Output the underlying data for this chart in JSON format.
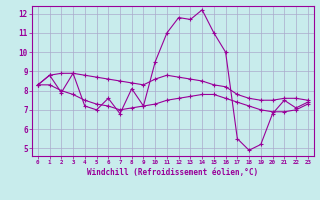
{
  "xlabel": "Windchill (Refroidissement éolien,°C)",
  "background_color": "#c8ecec",
  "line_color": "#990099",
  "grid_color": "#aaaacc",
  "yticks": [
    5,
    6,
    7,
    8,
    9,
    10,
    11,
    12
  ],
  "xticks": [
    0,
    1,
    2,
    3,
    4,
    5,
    6,
    7,
    8,
    9,
    10,
    11,
    12,
    13,
    14,
    15,
    16,
    17,
    18,
    19,
    20,
    21,
    22,
    23
  ],
  "hours": [
    0,
    1,
    2,
    3,
    4,
    5,
    6,
    7,
    8,
    9,
    10,
    11,
    12,
    13,
    14,
    15,
    16,
    17,
    18,
    19,
    20,
    21,
    22,
    23
  ],
  "line1": [
    8.3,
    8.8,
    7.9,
    8.9,
    7.2,
    7.0,
    7.6,
    6.8,
    8.1,
    7.2,
    9.5,
    11.0,
    11.8,
    11.7,
    12.2,
    11.0,
    10.0,
    5.5,
    4.9,
    5.2,
    6.8,
    7.5,
    7.1,
    7.4
  ],
  "line2": [
    8.3,
    8.8,
    8.9,
    8.9,
    8.8,
    8.7,
    8.6,
    8.5,
    8.4,
    8.3,
    8.6,
    8.8,
    8.7,
    8.6,
    8.5,
    8.3,
    8.2,
    7.8,
    7.6,
    7.5,
    7.5,
    7.6,
    7.6,
    7.5
  ],
  "line3": [
    8.3,
    8.3,
    8.0,
    7.8,
    7.5,
    7.3,
    7.2,
    7.0,
    7.1,
    7.2,
    7.3,
    7.5,
    7.6,
    7.7,
    7.8,
    7.8,
    7.6,
    7.4,
    7.2,
    7.0,
    6.9,
    6.9,
    7.0,
    7.3
  ]
}
